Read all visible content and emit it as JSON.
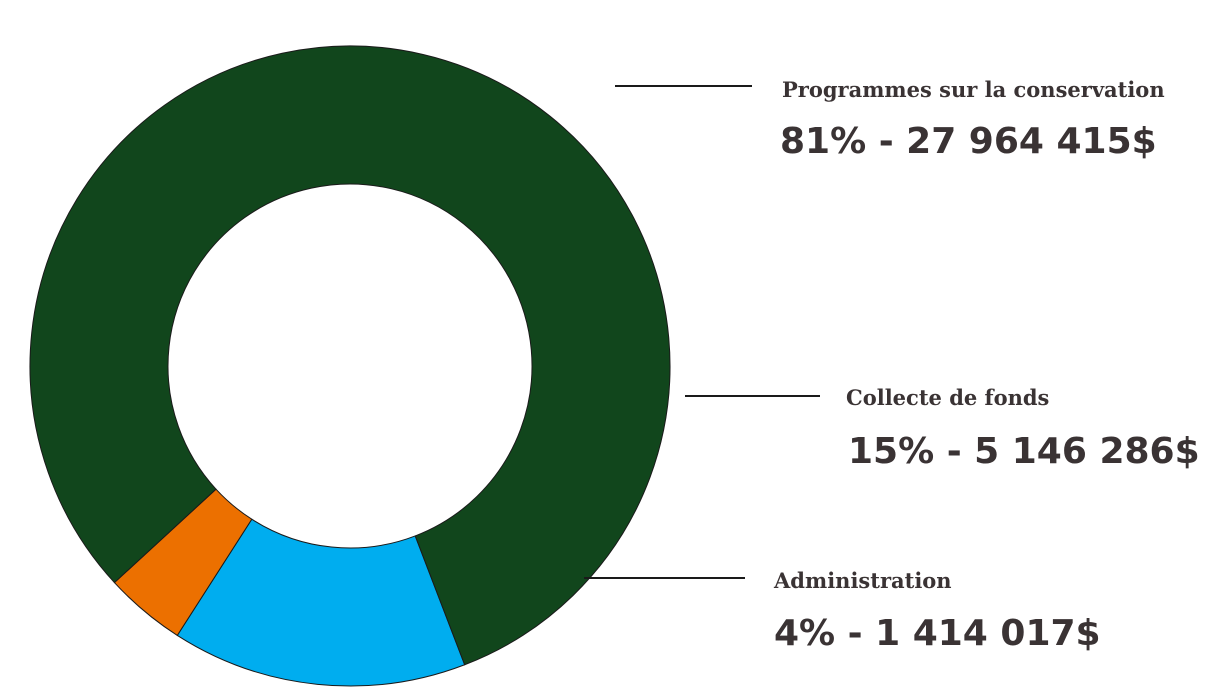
{
  "chart_data": {
    "type": "pie",
    "donut": true,
    "title": "",
    "categories": [
      "Programmes sur la conservation",
      "Collecte de fonds",
      "Administration"
    ],
    "values": [
      27964415,
      5146286,
      1414017
    ],
    "percentages": [
      81,
      15,
      4
    ],
    "labels": [
      {
        "name": "Programmes sur la conservation",
        "value_text": "81% - 27 964 415$"
      },
      {
        "name": "Collecte de fonds",
        "value_text": "15% - 5 146 286$"
      },
      {
        "name": "Administration",
        "value_text": "4% - 1 414 017$"
      }
    ],
    "colors": [
      "#11461c",
      "#00adef",
      "#ec7000"
    ],
    "legend": "none"
  }
}
